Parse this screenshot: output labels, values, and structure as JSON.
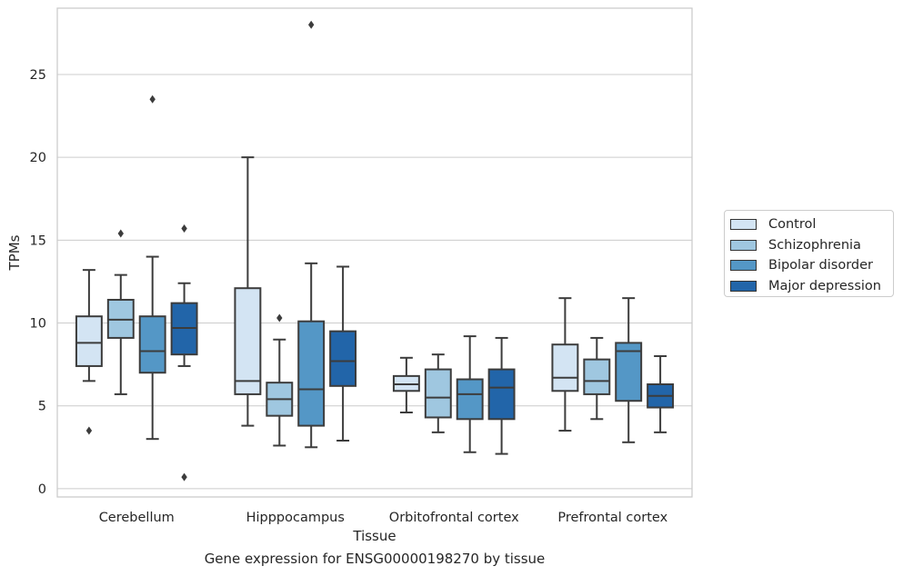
{
  "caption": "Gene expression for ENSG00000198270 by tissue",
  "chart_data": {
    "type": "box",
    "xlabel": "Tissue",
    "ylabel": "TPMs",
    "ylim": [
      -0.5,
      29
    ],
    "yticks": [
      0,
      5,
      10,
      15,
      20,
      25
    ],
    "grid": true,
    "legend_position": "right",
    "categories": [
      "Cerebellum",
      "Hipppocampus",
      "Orbitofrontal cortex",
      "Prefrontal cortex"
    ],
    "series": [
      {
        "name": "Control",
        "color": "#d3e4f3",
        "boxes": [
          {
            "whisker_low": 6.5,
            "q1": 7.4,
            "median": 8.8,
            "q3": 10.4,
            "whisker_high": 13.2,
            "outliers": [
              3.5
            ]
          },
          {
            "whisker_low": 3.8,
            "q1": 5.7,
            "median": 6.5,
            "q3": 12.1,
            "whisker_high": 20.0,
            "outliers": []
          },
          {
            "whisker_low": 4.6,
            "q1": 5.9,
            "median": 6.3,
            "q3": 6.8,
            "whisker_high": 7.9,
            "outliers": []
          },
          {
            "whisker_low": 3.5,
            "q1": 5.9,
            "median": 6.7,
            "q3": 8.7,
            "whisker_high": 11.5,
            "outliers": []
          }
        ]
      },
      {
        "name": "Schizophrenia",
        "color": "#9fc7e0",
        "boxes": [
          {
            "whisker_low": 5.7,
            "q1": 9.1,
            "median": 10.2,
            "q3": 11.4,
            "whisker_high": 12.9,
            "outliers": [
              15.4
            ]
          },
          {
            "whisker_low": 2.6,
            "q1": 4.4,
            "median": 5.4,
            "q3": 6.4,
            "whisker_high": 9.0,
            "outliers": [
              10.3
            ]
          },
          {
            "whisker_low": 3.4,
            "q1": 4.3,
            "median": 5.5,
            "q3": 7.2,
            "whisker_high": 8.1,
            "outliers": []
          },
          {
            "whisker_low": 4.2,
            "q1": 5.7,
            "median": 6.5,
            "q3": 7.8,
            "whisker_high": 9.1,
            "outliers": []
          }
        ]
      },
      {
        "name": "Bipolar disorder",
        "color": "#5497c6",
        "boxes": [
          {
            "whisker_low": 3.0,
            "q1": 7.0,
            "median": 8.3,
            "q3": 10.4,
            "whisker_high": 14.0,
            "outliers": [
              23.5
            ]
          },
          {
            "whisker_low": 2.5,
            "q1": 3.8,
            "median": 6.0,
            "q3": 10.1,
            "whisker_high": 13.6,
            "outliers": [
              28.0
            ]
          },
          {
            "whisker_low": 2.2,
            "q1": 4.2,
            "median": 5.7,
            "q3": 6.6,
            "whisker_high": 9.2,
            "outliers": []
          },
          {
            "whisker_low": 2.8,
            "q1": 5.3,
            "median": 8.3,
            "q3": 8.8,
            "whisker_high": 11.5,
            "outliers": []
          }
        ]
      },
      {
        "name": "Major depression",
        "color": "#2265a9",
        "boxes": [
          {
            "whisker_low": 7.4,
            "q1": 8.1,
            "median": 9.7,
            "q3": 11.2,
            "whisker_high": 12.4,
            "outliers": [
              15.7,
              0.7
            ]
          },
          {
            "whisker_low": 2.9,
            "q1": 6.2,
            "median": 7.7,
            "q3": 9.5,
            "whisker_high": 13.4,
            "outliers": []
          },
          {
            "whisker_low": 2.1,
            "q1": 4.2,
            "median": 6.1,
            "q3": 7.2,
            "whisker_high": 9.1,
            "outliers": []
          },
          {
            "whisker_low": 3.4,
            "q1": 4.9,
            "median": 5.6,
            "q3": 6.3,
            "whisker_high": 8.0,
            "outliers": []
          }
        ]
      }
    ]
  }
}
